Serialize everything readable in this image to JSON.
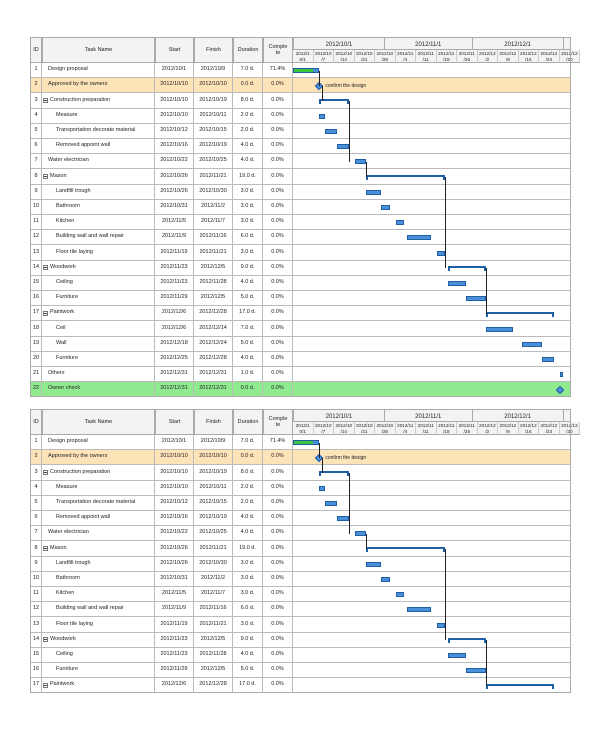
{
  "headers": {
    "id": "ID",
    "name": "Task Name",
    "start": "Start",
    "finish": "Finish",
    "duration": "Duration",
    "complete": "Comple\nte"
  },
  "timeline": {
    "months": [
      "2012/10/1",
      "2012/11/1",
      "2012/12/1"
    ],
    "day_labels": [
      "2012/1\n0/1",
      "2012/10\n/7",
      "2012/10\n/14",
      "2012/10\n/21",
      "2012/10\n/28",
      "2012/11\n/4",
      "2012/11\n/11",
      "2012/11\n/18",
      "2012/11\n/25",
      "2012/12\n/2",
      "2012/12\n/9",
      "2012/12\n/16",
      "2012/12\n/23",
      "2012/12\n/30"
    ]
  },
  "milestone_label": "confirm the design",
  "colors": {
    "bar": "#4a8fd8",
    "bar_border": "#1f5fa8",
    "progress": "#3cc43c",
    "highlight_row": "#fde3b8",
    "owner_check_row": "#90ea90"
  },
  "chart_data": {
    "type": "gantt",
    "x_axis_start": "2012/10/1",
    "tasks": [
      {
        "id": "1",
        "name": "Design proposal",
        "start": "2012/10/1",
        "finish": "2012/10/9",
        "duration": "7.0 d.",
        "complete": "71.4%",
        "level": 0,
        "kind": "task",
        "complete_frac": 0.714
      },
      {
        "id": "2",
        "name": "Approved by the owners",
        "start": "2012/10/10",
        "finish": "2012/10/10",
        "duration": "0.0 d.",
        "complete": "0.0%",
        "level": 0,
        "kind": "milestone",
        "highlight": "orange"
      },
      {
        "id": "3",
        "name": "Construction preparation",
        "start": "2012/10/10",
        "finish": "2012/10/19",
        "duration": "8.0 d.",
        "complete": "0.0%",
        "level": 0,
        "kind": "summary"
      },
      {
        "id": "4",
        "name": "Measure",
        "start": "2012/10/10",
        "finish": "2012/10/11",
        "duration": "2.0 d.",
        "complete": "0.0%",
        "level": 1,
        "kind": "task"
      },
      {
        "id": "5",
        "name": "Transportation decorate material",
        "start": "2012/10/12",
        "finish": "2012/10/15",
        "duration": "2.0 d.",
        "complete": "0.0%",
        "level": 1,
        "kind": "task"
      },
      {
        "id": "6",
        "name": "Removed appoint wall",
        "start": "2012/10/16",
        "finish": "2012/10/19",
        "duration": "4.0 d.",
        "complete": "0.0%",
        "level": 1,
        "kind": "task"
      },
      {
        "id": "7",
        "name": "Water electrician",
        "start": "2012/10/22",
        "finish": "2012/10/25",
        "duration": "4.0 d.",
        "complete": "0.0%",
        "level": 0,
        "kind": "task"
      },
      {
        "id": "8",
        "name": "Mason",
        "start": "2012/10/26",
        "finish": "2012/11/21",
        "duration": "19.0 d.",
        "complete": "0.0%",
        "level": 0,
        "kind": "summary"
      },
      {
        "id": "9",
        "name": "Landfill trough",
        "start": "2012/10/26",
        "finish": "2012/10/30",
        "duration": "3.0 d.",
        "complete": "0.0%",
        "level": 1,
        "kind": "task"
      },
      {
        "id": "10",
        "name": "Bathroom",
        "start": "2012/10/31",
        "finish": "2012/11/2",
        "duration": "3.0 d.",
        "complete": "0.0%",
        "level": 1,
        "kind": "task"
      },
      {
        "id": "11",
        "name": "Kitchen",
        "start": "2012/11/5",
        "finish": "2012/11/7",
        "duration": "3.0 d.",
        "complete": "0.0%",
        "level": 1,
        "kind": "task"
      },
      {
        "id": "12",
        "name": "Building wall and wall repair",
        "start": "2012/11/9",
        "finish": "2012/11/16",
        "duration": "6.0 d.",
        "complete": "0.0%",
        "level": 1,
        "kind": "task"
      },
      {
        "id": "13",
        "name": "Floor tile laying",
        "start": "2012/11/19",
        "finish": "2012/11/21",
        "duration": "3.0 d.",
        "complete": "0.0%",
        "level": 1,
        "kind": "task"
      },
      {
        "id": "14",
        "name": "Woodwork",
        "start": "2012/11/23",
        "finish": "2012/12/5",
        "duration": "9.0 d.",
        "complete": "0.0%",
        "level": 0,
        "kind": "summary"
      },
      {
        "id": "15",
        "name": "Ceiling",
        "start": "2012/11/23",
        "finish": "2012/11/28",
        "duration": "4.0 d.",
        "complete": "0.0%",
        "level": 1,
        "kind": "task"
      },
      {
        "id": "16",
        "name": "Furniture",
        "start": "2012/11/29",
        "finish": "2012/12/5",
        "duration": "5.0 d.",
        "complete": "0.0%",
        "level": 1,
        "kind": "task"
      },
      {
        "id": "17",
        "name": "Paintwork",
        "start": "2012/12/6",
        "finish": "2012/12/28",
        "duration": "17.0 d.",
        "complete": "0.0%",
        "level": 0,
        "kind": "summary"
      },
      {
        "id": "18",
        "name": "Ceil",
        "start": "2012/12/6",
        "finish": "2012/12/14",
        "duration": "7.0 d.",
        "complete": "0.0%",
        "level": 1,
        "kind": "task"
      },
      {
        "id": "19",
        "name": "Wall",
        "start": "2012/12/18",
        "finish": "2012/12/24",
        "duration": "5.0 d.",
        "complete": "0.0%",
        "level": 1,
        "kind": "task"
      },
      {
        "id": "20",
        "name": "Furniture",
        "start": "2012/12/25",
        "finish": "2012/12/28",
        "duration": "4.0 d.",
        "complete": "0.0%",
        "level": 1,
        "kind": "task"
      },
      {
        "id": "21",
        "name": "Others",
        "start": "2012/12/31",
        "finish": "2012/12/31",
        "duration": "1.0 d.",
        "complete": "0.0%",
        "level": 0,
        "kind": "task"
      },
      {
        "id": "22",
        "name": "Owner check",
        "start": "2012/12/31",
        "finish": "2012/12/31",
        "duration": "0.0 d.",
        "complete": "0.0%",
        "level": 0,
        "kind": "milestone",
        "highlight": "green"
      }
    ],
    "links": [
      [
        1,
        2
      ],
      [
        2,
        3
      ],
      [
        3,
        7
      ],
      [
        7,
        8
      ],
      [
        8,
        14
      ],
      [
        14,
        17
      ]
    ]
  }
}
